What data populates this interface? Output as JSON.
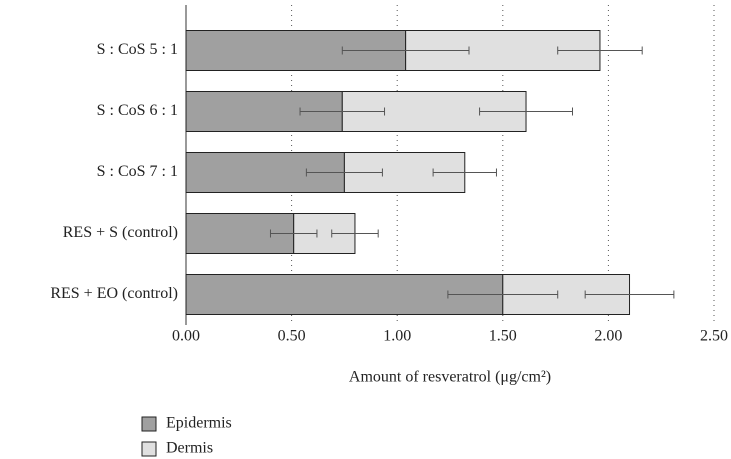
{
  "chart_data": {
    "type": "stacked-bar-horizontal",
    "categories": [
      "S : CoS 5 : 1",
      "S : CoS 6 : 1",
      "S : CoS 7 : 1",
      "RES + S (control)",
      "RES + EO (control)"
    ],
    "series": [
      {
        "name": "Epidermis",
        "color": "#a0a0a0",
        "values": [
          1.04,
          0.74,
          0.75,
          0.51,
          1.5
        ],
        "errors": [
          0.3,
          0.2,
          0.18,
          0.11,
          0.26
        ]
      },
      {
        "name": "Dermis",
        "color": "#e0e0e0",
        "values": [
          0.92,
          0.87,
          0.57,
          0.29,
          0.6
        ],
        "errors": [
          0.2,
          0.22,
          0.15,
          0.11,
          0.21
        ]
      }
    ],
    "xlabel": "Amount of resveratrol (μg/cm²)",
    "xlim": [
      0,
      2.5
    ],
    "xticks": [
      {
        "value": 0,
        "label": "0.00"
      },
      {
        "value": 0.5,
        "label": "0.50"
      },
      {
        "value": 1,
        "label": "1.00"
      },
      {
        "value": 1.5,
        "label": "1.50"
      },
      {
        "value": 2,
        "label": "2.00"
      },
      {
        "value": 2.5,
        "label": "2.50"
      }
    ],
    "grid": true,
    "legend": "bottom-left"
  }
}
